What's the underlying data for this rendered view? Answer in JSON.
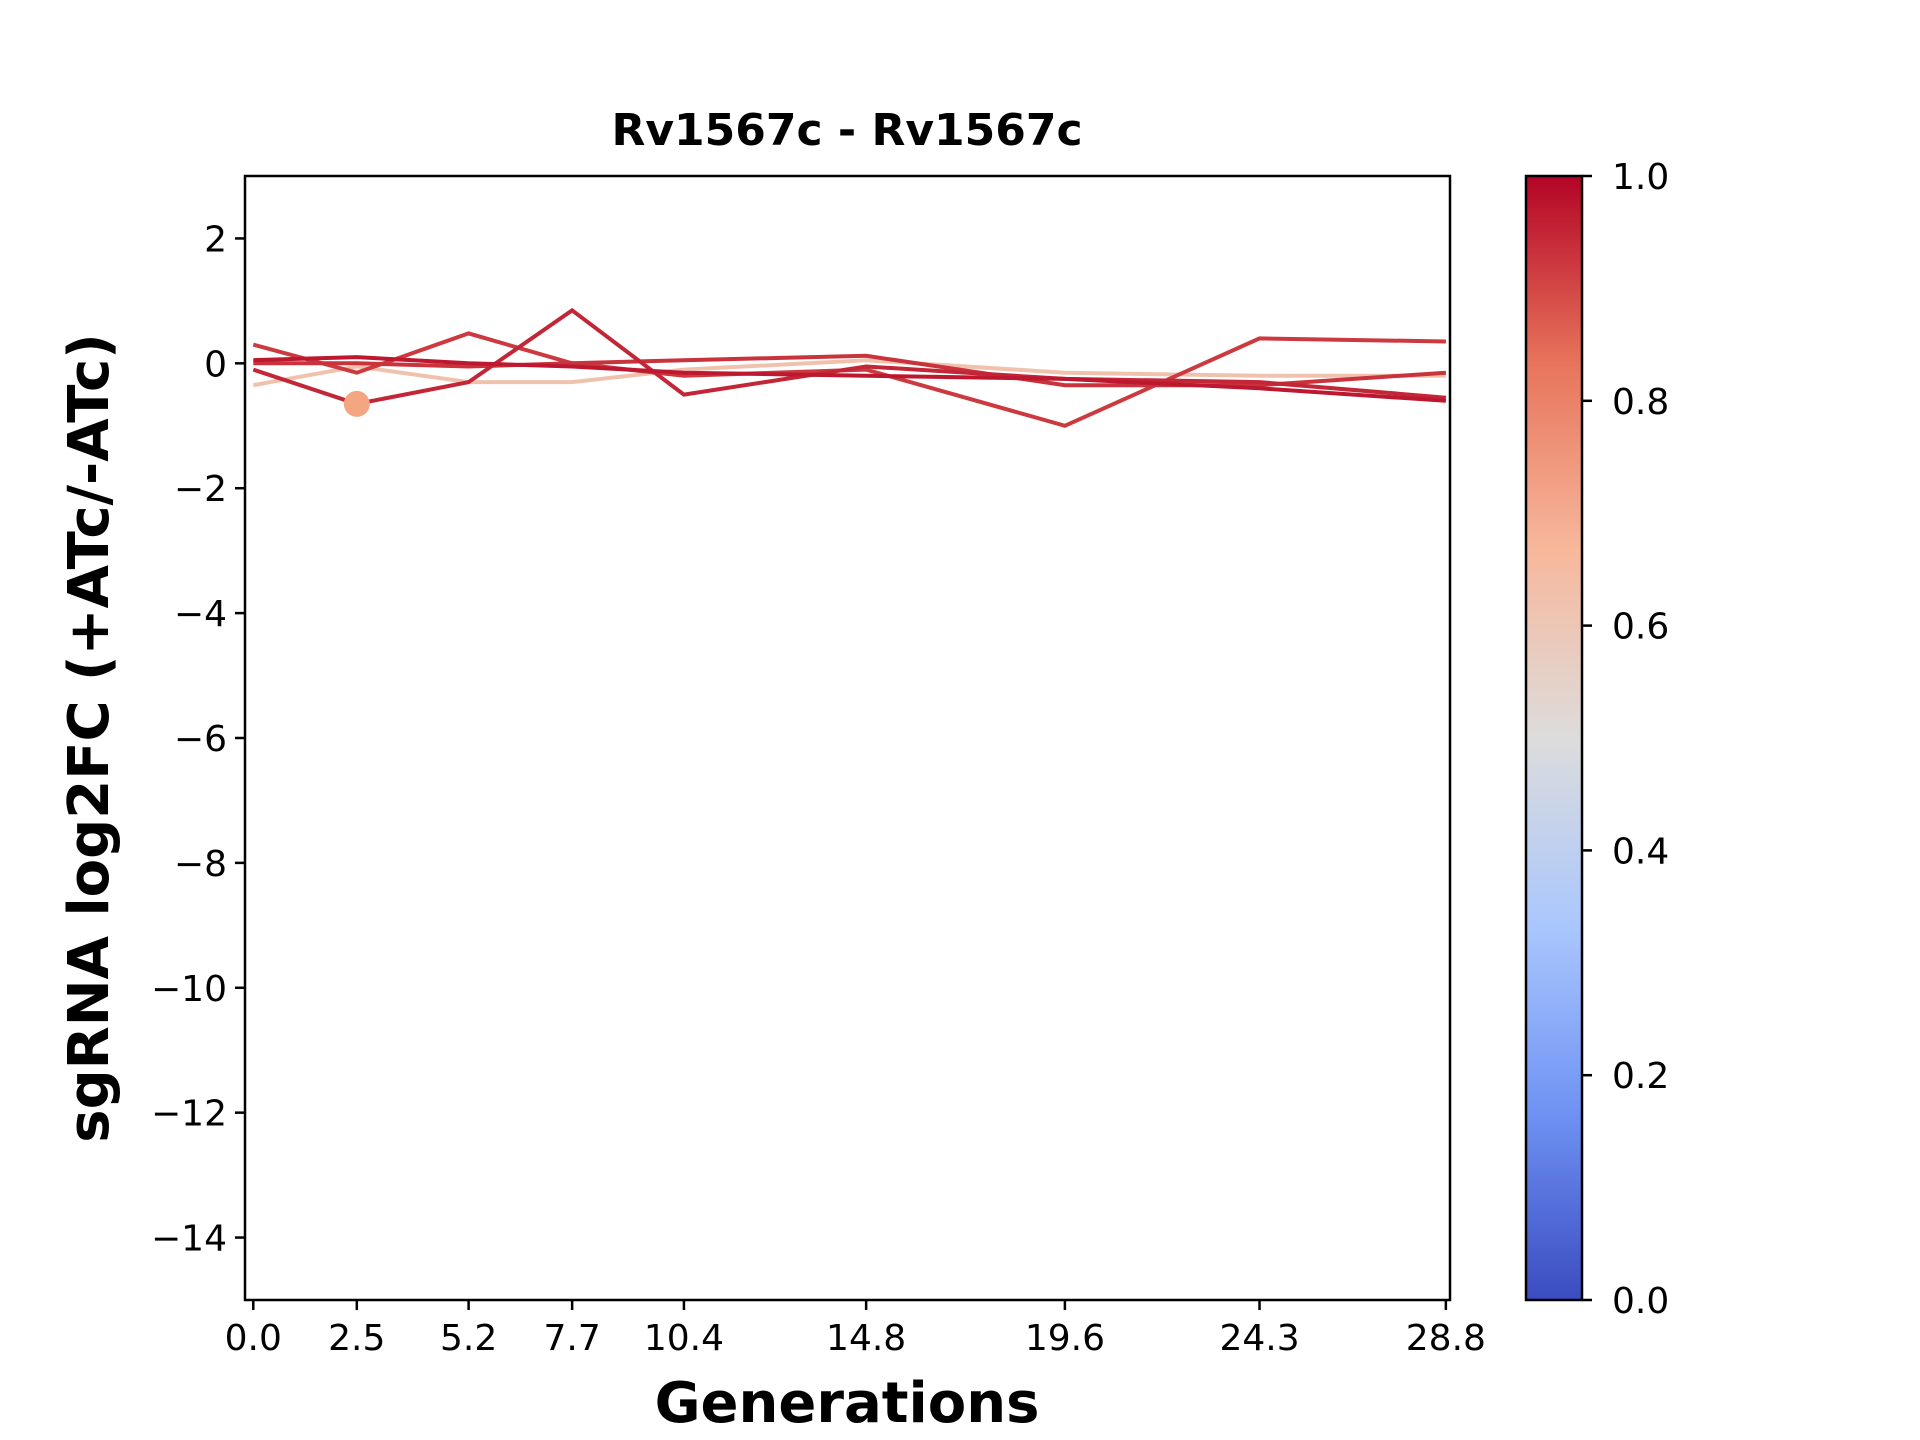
{
  "chart_data": {
    "type": "line",
    "title": "Rv1567c - Rv1567c",
    "xlabel": "Generations",
    "ylabel": "sgRNA log2FC (+ATc/-ATc)",
    "x_ticks": [
      "0.0",
      "2.5",
      "5.2",
      "7.7",
      "10.4",
      "14.8",
      "19.6",
      "24.3",
      "28.8"
    ],
    "y_ticks": [
      2,
      0,
      -2,
      -4,
      -6,
      -8,
      -10,
      -12,
      -14
    ],
    "y_tick_labels": [
      "2",
      "0",
      "−2",
      "−4",
      "−6",
      "−8",
      "−10",
      "−12",
      "−14"
    ],
    "xlim": [
      -0.2,
      28.9
    ],
    "ylim": [
      -15,
      3
    ],
    "colormap": "coolwarm",
    "colorbar": {
      "range": [
        0,
        1
      ],
      "ticks": [
        "0.0",
        "0.2",
        "0.4",
        "0.6",
        "0.8",
        "1.0"
      ],
      "colors": [
        "#3b4cc0",
        "#6f92f3",
        "#aac7fd",
        "#dddcdc",
        "#f7b89c",
        "#e7745b",
        "#b40426"
      ]
    },
    "x": [
      0.0,
      2.5,
      5.2,
      7.7,
      10.4,
      14.8,
      19.6,
      24.3,
      28.8
    ],
    "series": [
      {
        "color_value": 0.62,
        "values": [
          -0.35,
          -0.05,
          -0.3,
          -0.3,
          -0.1,
          0.05,
          -0.15,
          -0.2,
          -0.2
        ]
      },
      {
        "color_value": 0.92,
        "values": [
          0.3,
          -0.15,
          0.48,
          0.0,
          -0.2,
          -0.1,
          -1.0,
          0.4,
          0.35
        ]
      },
      {
        "color_value": 0.95,
        "values": [
          -0.1,
          -0.65,
          -0.3,
          0.85,
          -0.5,
          -0.05,
          -0.25,
          -0.3,
          -0.55
        ]
      },
      {
        "color_value": 0.97,
        "values": [
          0.05,
          0.1,
          0.0,
          -0.05,
          -0.15,
          -0.2,
          -0.25,
          -0.4,
          -0.6
        ]
      },
      {
        "color_value": 0.93,
        "values": [
          0.0,
          0.0,
          -0.05,
          0.0,
          0.05,
          0.12,
          -0.35,
          -0.35,
          -0.15
        ]
      }
    ],
    "markers": [
      {
        "x": 2.5,
        "y": -0.65,
        "color": "#f4a582"
      }
    ]
  }
}
